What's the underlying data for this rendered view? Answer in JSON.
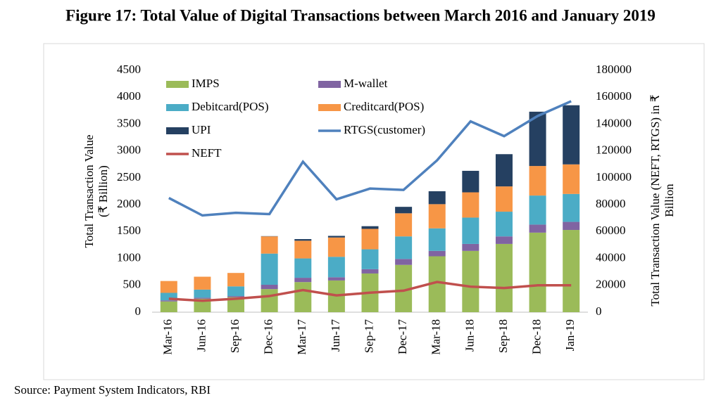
{
  "chart_data": {
    "type": "bar",
    "title": "Figure 17: Total Value of Digital Transactions between March 2016 and January 2019",
    "source": "Source: Payment System Indicators, RBI",
    "ylabel": [
      "Total Transaction Value",
      "(₹ Billion)"
    ],
    "y2label": [
      "Total Transaction Value (NEFT, RTGS) in ₹",
      "Billion"
    ],
    "categories": [
      "Mar-16",
      "Jun-16",
      "Sep-16",
      "Dec-16",
      "Mar-17",
      "Jun-17",
      "Sep-17",
      "Dec-17",
      "Mar-18",
      "Jun-18",
      "Sep-18",
      "Dec-18",
      "Jan-19"
    ],
    "ylim": [
      0,
      4500
    ],
    "yticks": [
      0,
      500,
      1000,
      1500,
      2000,
      2500,
      3000,
      3500,
      4000,
      4500
    ],
    "y2lim": [
      0,
      180000
    ],
    "y2ticks": [
      0,
      20000,
      40000,
      60000,
      80000,
      100000,
      120000,
      140000,
      160000,
      180000
    ],
    "series": [
      {
        "name": "IMPS",
        "color": "#9bbb59",
        "values": [
          200,
          250,
          280,
          430,
          560,
          590,
          720,
          880,
          1040,
          1140,
          1270,
          1480,
          1530
        ]
      },
      {
        "name": "M-wallet",
        "color": "#8064a2",
        "values": [
          20,
          20,
          20,
          80,
          80,
          60,
          80,
          110,
          100,
          130,
          140,
          150,
          150
        ]
      },
      {
        "name": "Debitcard(POS)",
        "color": "#4bacc6",
        "values": [
          140,
          150,
          180,
          580,
          360,
          380,
          370,
          420,
          420,
          490,
          460,
          540,
          520
        ]
      },
      {
        "name": "Creditcard(POS)",
        "color": "#f79646",
        "values": [
          220,
          240,
          250,
          320,
          330,
          360,
          380,
          430,
          450,
          470,
          470,
          550,
          550
        ]
      },
      {
        "name": "UPI",
        "color": "#254061",
        "values": [
          0,
          0,
          0,
          5,
          30,
          30,
          50,
          120,
          240,
          400,
          600,
          1010,
          1100
        ]
      },
      {
        "name": "RTGS(customer)",
        "color": "#4f81bd",
        "type": "line",
        "axis": "y2",
        "values": [
          85000,
          72000,
          74000,
          73000,
          112000,
          84000,
          92000,
          91000,
          113000,
          142000,
          131000,
          146000,
          157000
        ]
      },
      {
        "name": "NEFT",
        "color": "#c0504d",
        "type": "line",
        "axis": "y2",
        "values": [
          10000,
          8500,
          10000,
          12000,
          16500,
          12500,
          14500,
          16000,
          22500,
          19000,
          18000,
          20000,
          20000
        ]
      }
    ]
  }
}
